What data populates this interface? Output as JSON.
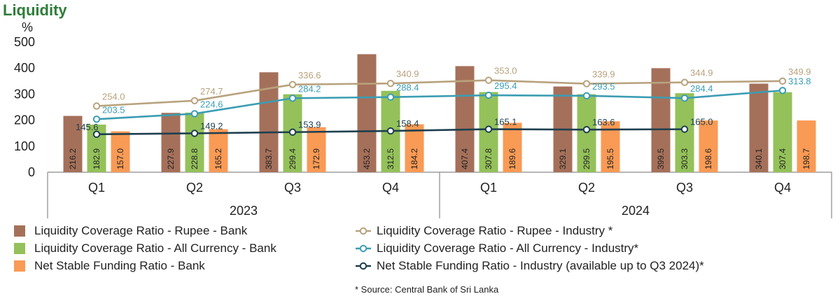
{
  "chart_data": {
    "type": "bar",
    "title": "Liquidity",
    "ylabel": "%",
    "ylim": [
      0,
      500
    ],
    "yticks": [
      "0",
      "100",
      "200",
      "300",
      "400",
      "500"
    ],
    "quarters": [
      "Q1",
      "Q2",
      "Q3",
      "Q4",
      "Q1",
      "Q2",
      "Q3",
      "Q4"
    ],
    "years": [
      {
        "label": "2023",
        "span": [
          0,
          3
        ]
      },
      {
        "label": "2024",
        "span": [
          4,
          7
        ]
      }
    ],
    "bar_series": [
      {
        "name": "Liquidity Coverage Ratio - Rupee - Bank",
        "color": "#a5705a",
        "values": [
          216.2,
          227.9,
          383.7,
          453.2,
          407.4,
          329.1,
          399.5,
          340.1
        ],
        "labels": [
          "216.2",
          "227.9",
          "383.7",
          "453.2",
          "407.4",
          "329.1",
          "399.5",
          "340.1"
        ]
      },
      {
        "name": "Liquidity Coverage Ratio - All Currency - Bank",
        "color": "#94c15a",
        "values": [
          182.9,
          228.8,
          299.4,
          312.5,
          307.8,
          299.5,
          303.3,
          307.4
        ],
        "labels": [
          "182.9",
          "228.8",
          "299.4",
          "312.5",
          "307.8",
          "299.5",
          "303.3",
          "307.4"
        ]
      },
      {
        "name": "Net Stable Funding Ratio - Bank",
        "color": "#f99a55",
        "values": [
          157.0,
          165.2,
          172.9,
          184.2,
          189.6,
          195.5,
          198.6,
          198.7
        ],
        "labels": [
          "157.0",
          "165.2",
          "172.9",
          "184.2",
          "189.6",
          "195.5",
          "198.6",
          "198.7"
        ]
      }
    ],
    "line_series": [
      {
        "name": "Liquidity Coverage Ratio - Rupee - Industry *",
        "color": "#b8a27d",
        "values": [
          254.0,
          274.7,
          336.6,
          340.9,
          353.0,
          339.9,
          344.9,
          349.9
        ],
        "labels": [
          "254.0",
          "274.7",
          "336.6",
          "340.9",
          "353.0",
          "339.9",
          "344.9",
          "349.9"
        ]
      },
      {
        "name": "Liquidity Coverage Ratio - All Currency - Industry*",
        "color": "#3b9db3",
        "values": [
          203.5,
          224.6,
          284.2,
          288.4,
          295.4,
          293.5,
          284.4,
          313.8
        ],
        "labels": [
          "203.5",
          "224.6",
          "284.2",
          "288.4",
          "295.4",
          "293.5",
          "284.4",
          "313.8"
        ]
      },
      {
        "name": "Net Stable Funding Ratio - Industry (available up to Q3 2024)*",
        "color": "#1d3f4f",
        "values": [
          145.6,
          149.2,
          153.9,
          158.4,
          165.1,
          163.6,
          165.0,
          null
        ],
        "labels": [
          "145.6",
          "149.2",
          "153.9",
          "158.4",
          "165.1",
          "163.6",
          "165.0",
          ""
        ]
      }
    ],
    "footnote": "* Source: Central Bank of Sri Lanka"
  }
}
